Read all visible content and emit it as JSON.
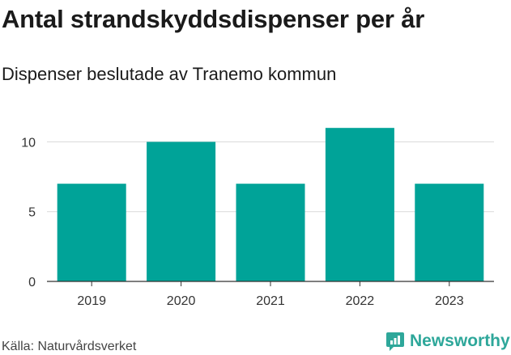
{
  "header": {
    "title": "Antal strandskyddsdispenser per år",
    "subtitle": "Dispenser beslutade av Tranemo kommun"
  },
  "footer": {
    "source": "Källa: Naturvårdsverket",
    "brand": "Newsworthy",
    "brand_color": "#2ea79a"
  },
  "chart_data": {
    "type": "bar",
    "title": "Antal strandskyddsdispenser per år",
    "subtitle": "Dispenser beslutade av Tranemo kommun",
    "categories": [
      "2019",
      "2020",
      "2021",
      "2022",
      "2023"
    ],
    "values": [
      7,
      10,
      7,
      11,
      7
    ],
    "xlabel": "",
    "ylabel": "",
    "ylim": [
      0,
      11.3
    ],
    "yticks": [
      0,
      5,
      10
    ],
    "grid": true,
    "bar_color": "#00a398"
  }
}
